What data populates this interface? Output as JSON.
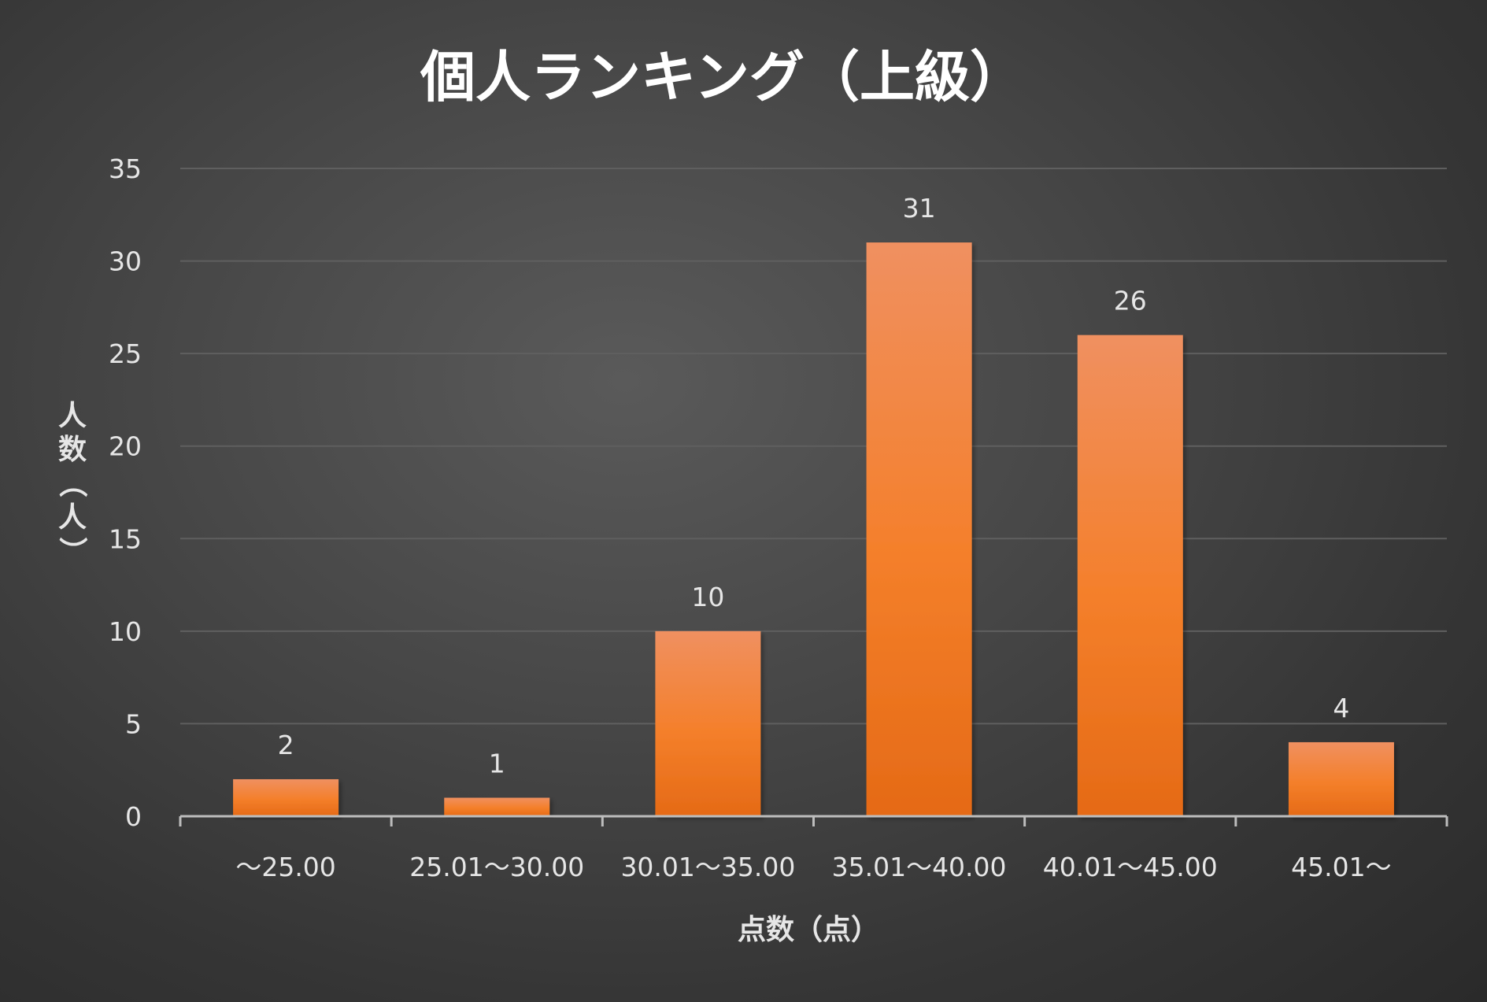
{
  "colors": {
    "bar_top": "#f09060",
    "bar_mid": "#f47f2a",
    "bar_bottom": "#e56a16",
    "gridline": "#5f5f5f",
    "axis_line": "#bdbdbd",
    "text": "#e6e6e6"
  },
  "chart_data": {
    "type": "bar",
    "title": "個人ランキング（上級）",
    "xlabel": "点数（点）",
    "ylabel": "人数（人）",
    "categories": [
      "～25.00",
      "25.01～30.00",
      "30.01～35.00",
      "35.01～40.00",
      "40.01～45.00",
      "45.01～"
    ],
    "values": [
      2,
      1,
      10,
      31,
      26,
      4
    ],
    "ylim": [
      0,
      35
    ],
    "yticks": [
      0,
      5,
      10,
      15,
      20,
      25,
      30,
      35
    ],
    "grid": true,
    "data_labels": true,
    "legend": "none"
  }
}
